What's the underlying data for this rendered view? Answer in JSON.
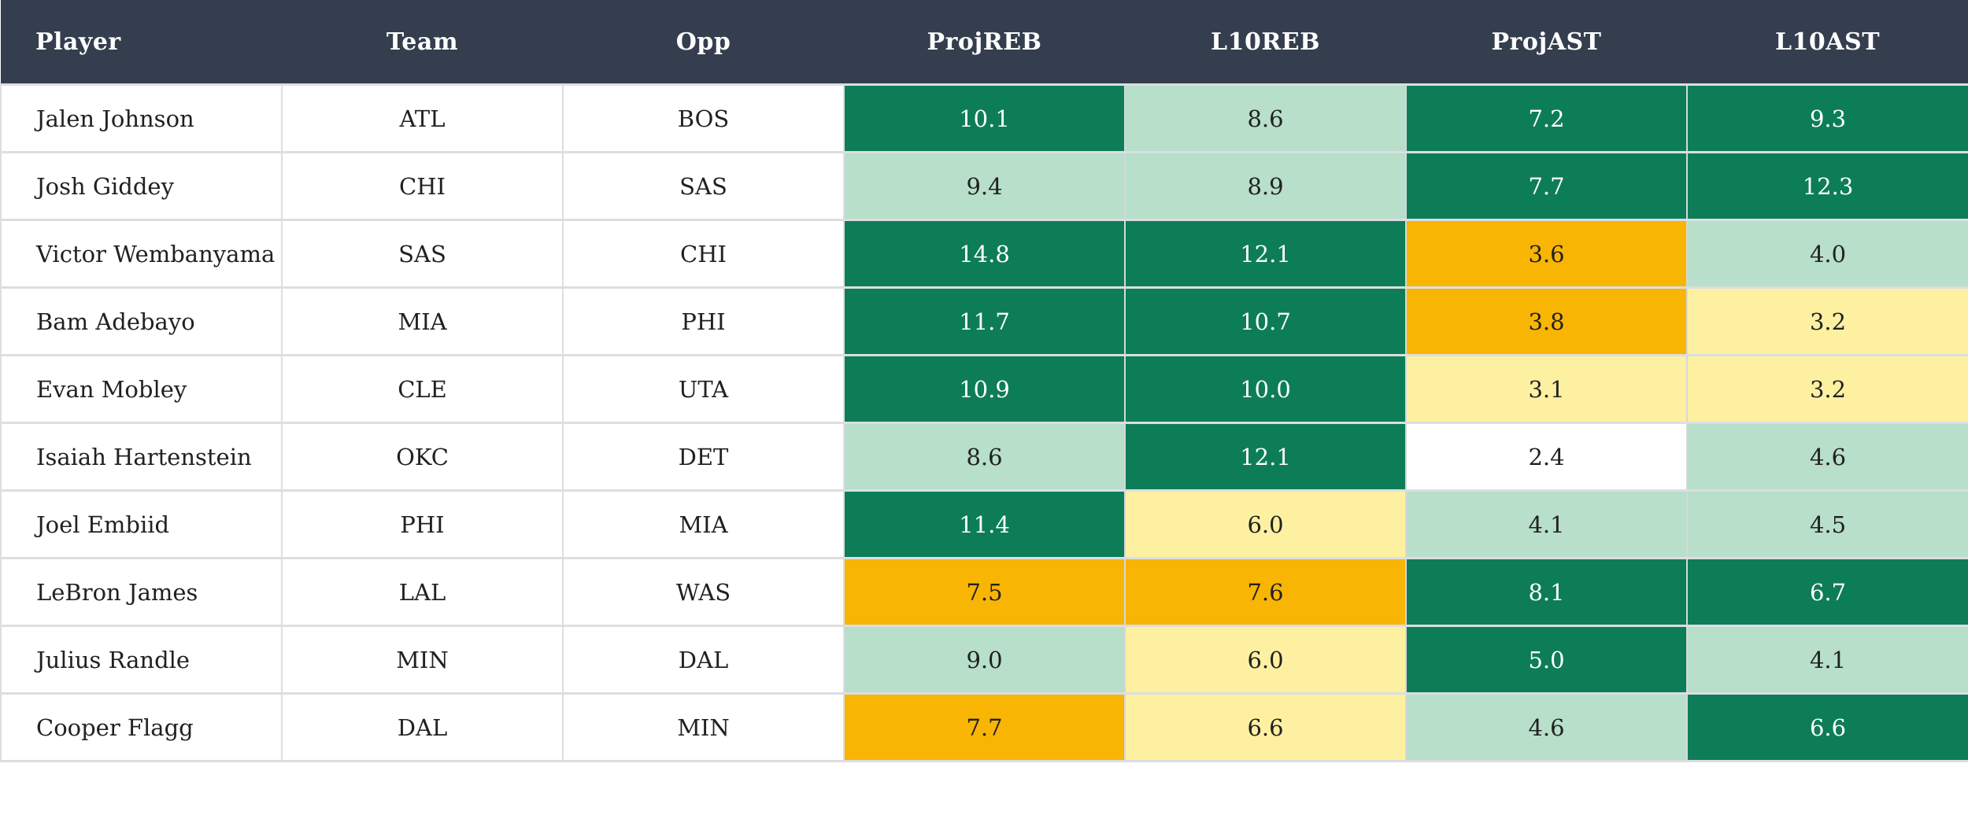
{
  "table": {
    "columns": [
      {
        "key": "player",
        "label": "Player",
        "align": "left",
        "stat": false
      },
      {
        "key": "team",
        "label": "Team",
        "align": "center",
        "stat": false
      },
      {
        "key": "opp",
        "label": "Opp",
        "align": "center",
        "stat": false
      },
      {
        "key": "projreb",
        "label": "ProjREB",
        "align": "center",
        "stat": true
      },
      {
        "key": "l10reb",
        "label": "L10REB",
        "align": "center",
        "stat": true
      },
      {
        "key": "projast",
        "label": "ProjAST",
        "align": "center",
        "stat": true
      },
      {
        "key": "l10ast",
        "label": "L10AST",
        "align": "center",
        "stat": true
      }
    ],
    "rows": [
      {
        "player": "Jalen Johnson",
        "team": "ATL",
        "opp": "BOS",
        "projreb": {
          "value": "10.1",
          "level": "strong"
        },
        "l10reb": {
          "value": "8.6",
          "level": "good"
        },
        "projast": {
          "value": "7.2",
          "level": "strong"
        },
        "l10ast": {
          "value": "9.3",
          "level": "strong"
        }
      },
      {
        "player": "Josh Giddey",
        "team": "CHI",
        "opp": "SAS",
        "projreb": {
          "value": "9.4",
          "level": "good"
        },
        "l10reb": {
          "value": "8.9",
          "level": "good"
        },
        "projast": {
          "value": "7.7",
          "level": "strong"
        },
        "l10ast": {
          "value": "12.3",
          "level": "strong"
        }
      },
      {
        "player": "Victor Wembanyama",
        "team": "SAS",
        "opp": "CHI",
        "projreb": {
          "value": "14.8",
          "level": "strong"
        },
        "l10reb": {
          "value": "12.1",
          "level": "strong"
        },
        "projast": {
          "value": "3.6",
          "level": "poor"
        },
        "l10ast": {
          "value": "4.0",
          "level": "good"
        }
      },
      {
        "player": "Bam Adebayo",
        "team": "MIA",
        "opp": "PHI",
        "projreb": {
          "value": "11.7",
          "level": "strong"
        },
        "l10reb": {
          "value": "10.7",
          "level": "strong"
        },
        "projast": {
          "value": "3.8",
          "level": "poor"
        },
        "l10ast": {
          "value": "3.2",
          "level": "weak"
        }
      },
      {
        "player": "Evan Mobley",
        "team": "CLE",
        "opp": "UTA",
        "projreb": {
          "value": "10.9",
          "level": "strong"
        },
        "l10reb": {
          "value": "10.0",
          "level": "strong"
        },
        "projast": {
          "value": "3.1",
          "level": "weak"
        },
        "l10ast": {
          "value": "3.2",
          "level": "weak"
        }
      },
      {
        "player": "Isaiah Hartenstein",
        "team": "OKC",
        "opp": "DET",
        "projreb": {
          "value": "8.6",
          "level": "good"
        },
        "l10reb": {
          "value": "12.1",
          "level": "strong"
        },
        "projast": {
          "value": "2.4",
          "level": "neutral"
        },
        "l10ast": {
          "value": "4.6",
          "level": "good"
        }
      },
      {
        "player": "Joel Embiid",
        "team": "PHI",
        "opp": "MIA",
        "projreb": {
          "value": "11.4",
          "level": "strong"
        },
        "l10reb": {
          "value": "6.0",
          "level": "weak"
        },
        "projast": {
          "value": "4.1",
          "level": "good"
        },
        "l10ast": {
          "value": "4.5",
          "level": "good"
        }
      },
      {
        "player": "LeBron James",
        "team": "LAL",
        "opp": "WAS",
        "projreb": {
          "value": "7.5",
          "level": "poor"
        },
        "l10reb": {
          "value": "7.6",
          "level": "poor"
        },
        "projast": {
          "value": "8.1",
          "level": "strong"
        },
        "l10ast": {
          "value": "6.7",
          "level": "strong"
        }
      },
      {
        "player": "Julius Randle",
        "team": "MIN",
        "opp": "DAL",
        "projreb": {
          "value": "9.0",
          "level": "good"
        },
        "l10reb": {
          "value": "6.0",
          "level": "weak"
        },
        "projast": {
          "value": "5.0",
          "level": "strong"
        },
        "l10ast": {
          "value": "4.1",
          "level": "good"
        }
      },
      {
        "player": "Cooper Flagg",
        "team": "DAL",
        "opp": "MIN",
        "projreb": {
          "value": "7.7",
          "level": "poor"
        },
        "l10reb": {
          "value": "6.6",
          "level": "weak"
        },
        "projast": {
          "value": "4.6",
          "level": "good"
        },
        "l10ast": {
          "value": "6.6",
          "level": "strong"
        }
      }
    ]
  },
  "colors": {
    "header_bg": "#343e4e",
    "header_text": "#ffffff",
    "strong": "#0d7d58",
    "good": "#b7dfca",
    "weak": "#fdf0a1",
    "poor": "#f9b503",
    "neutral": "#ffffff",
    "text_on_strong": "#ffffff",
    "text_dark": "#212121",
    "border": "#dcdee2"
  }
}
